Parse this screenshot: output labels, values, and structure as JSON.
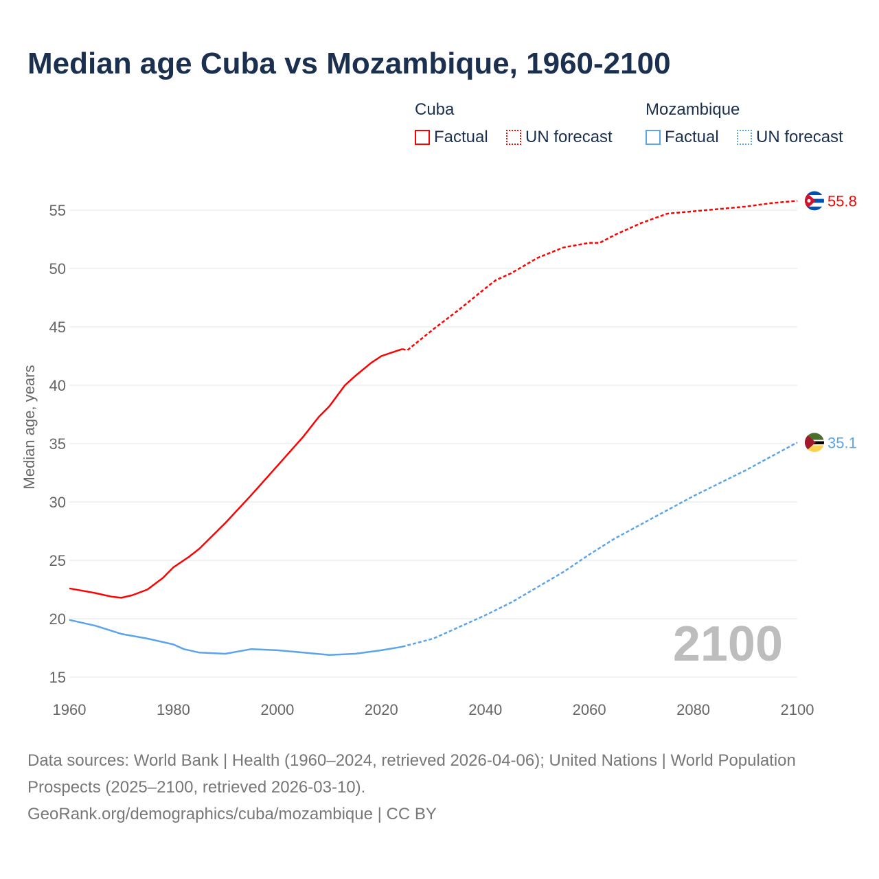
{
  "chart_data": {
    "type": "line",
    "title": "Median age Cuba vs Mozambique, 1960-2100",
    "xlabel": "",
    "ylabel": "Median age, years",
    "xlim": [
      1960,
      2100
    ],
    "ylim": [
      15,
      57
    ],
    "x_ticks": [
      1960,
      1980,
      2000,
      2020,
      2040,
      2060,
      2080,
      2100
    ],
    "y_ticks": [
      15,
      20,
      25,
      30,
      35,
      40,
      45,
      50,
      55
    ],
    "grid": true,
    "year_watermark": "2100",
    "legend": {
      "placement": "top-right",
      "groups": [
        {
          "name": "Cuba",
          "items": [
            "Factual",
            "UN forecast"
          ]
        },
        {
          "name": "Mozambique",
          "items": [
            "Factual",
            "UN forecast"
          ]
        }
      ]
    },
    "series": [
      {
        "name": "Cuba",
        "color": "#ff0000",
        "end_label": "55.8",
        "flag": "cuba-flag",
        "factual": {
          "x": [
            1960,
            1965,
            1968,
            1970,
            1972,
            1975,
            1978,
            1980,
            1983,
            1985,
            1990,
            1995,
            2000,
            2005,
            2008,
            2010,
            2013,
            2015,
            2018,
            2020,
            2024
          ],
          "y": [
            22.6,
            22.2,
            21.9,
            21.8,
            22.0,
            22.5,
            23.5,
            24.4,
            25.3,
            26.0,
            28.2,
            30.6,
            33.1,
            35.6,
            37.3,
            38.2,
            40.0,
            40.8,
            41.9,
            42.5,
            43.1
          ]
        },
        "forecast": {
          "x": [
            2024,
            2025,
            2030,
            2035,
            2040,
            2042,
            2045,
            2050,
            2055,
            2060,
            2062,
            2065,
            2070,
            2075,
            2080,
            2085,
            2090,
            2095,
            2100
          ],
          "y": [
            43.1,
            43.0,
            44.8,
            46.5,
            48.3,
            49.0,
            49.6,
            50.9,
            51.8,
            52.2,
            52.2,
            52.9,
            53.9,
            54.7,
            54.9,
            55.1,
            55.3,
            55.6,
            55.8
          ]
        }
      },
      {
        "name": "Mozambique",
        "color": "#5ba4ea",
        "end_label": "35.1",
        "flag": "mozambique-flag",
        "factual": {
          "x": [
            1960,
            1965,
            1970,
            1975,
            1980,
            1982,
            1985,
            1990,
            1995,
            2000,
            2005,
            2010,
            2015,
            2020,
            2024
          ],
          "y": [
            19.9,
            19.4,
            18.7,
            18.3,
            17.8,
            17.4,
            17.1,
            17.0,
            17.4,
            17.3,
            17.1,
            16.9,
            17.0,
            17.3,
            17.6
          ]
        },
        "forecast": {
          "x": [
            2024,
            2030,
            2035,
            2040,
            2045,
            2050,
            2055,
            2060,
            2065,
            2070,
            2075,
            2080,
            2085,
            2090,
            2095,
            2100
          ],
          "y": [
            17.6,
            18.3,
            19.3,
            20.3,
            21.4,
            22.7,
            24.0,
            25.5,
            26.9,
            28.1,
            29.3,
            30.5,
            31.6,
            32.7,
            33.9,
            35.1
          ]
        }
      }
    ]
  },
  "footer": {
    "line1": "Data sources: World Bank | Health (1960–2024, retrieved 2026-04-06); United Nations | World Population Prospects (2025–2100, retrieved 2026-03-10).",
    "line2": "GeoRank.org/demographics/cuba/mozambique | CC BY"
  }
}
